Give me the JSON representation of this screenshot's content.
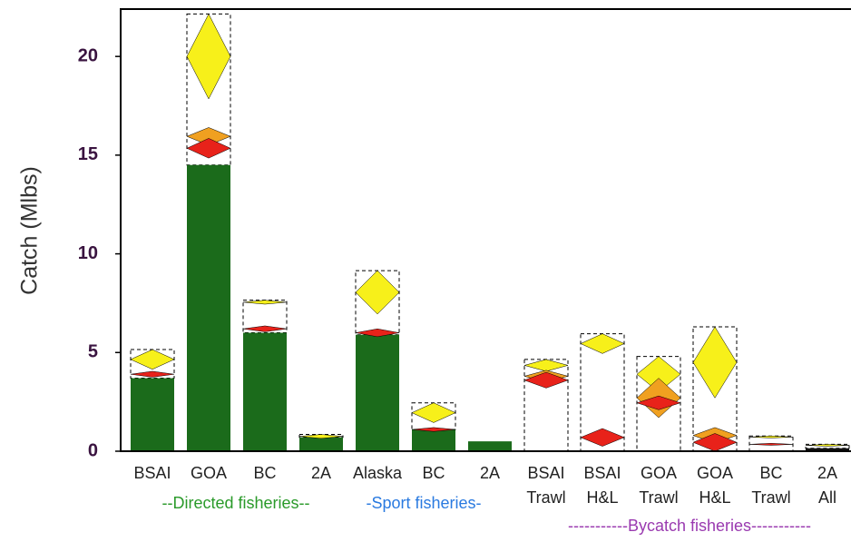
{
  "chart_data": {
    "type": "bar",
    "y_label": "Catch (Mlbs)",
    "categories": [
      [
        "BSAI"
      ],
      [
        "GOA"
      ],
      [
        "BC"
      ],
      [
        "2A"
      ],
      [
        "Alaska"
      ],
      [
        "BC"
      ],
      [
        "2A"
      ],
      [
        "BSAI",
        "Trawl"
      ],
      [
        "BSAI",
        "H&L"
      ],
      [
        "GOA",
        "Trawl"
      ],
      [
        "GOA",
        "H&L"
      ],
      [
        "BC",
        "Trawl"
      ],
      [
        "2A",
        "All"
      ]
    ],
    "values": [
      3.7,
      14.5,
      6.0,
      0.7,
      5.9,
      1.1,
      0.5,
      null,
      null,
      null,
      null,
      null,
      0.15
    ],
    "color": "#1b6b1b",
    "diamonds": [
      {
        "color": "#e8221a",
        "values": [
          3.9,
          15.35,
          6.2,
          null,
          6.0,
          1.1,
          null,
          3.6,
          0.7,
          2.45,
          0.45,
          0.35,
          null
        ],
        "errors": [
          0.15,
          0.5,
          0.15,
          null,
          0.2,
          0.1,
          null,
          0.4,
          0.45,
          0.35,
          0.45,
          0.05,
          null
        ]
      },
      {
        "color": "#f0a020",
        "values": [
          null,
          15.95,
          null,
          null,
          null,
          null,
          null,
          3.8,
          null,
          2.7,
          0.8,
          null,
          null
        ],
        "errors": [
          null,
          0.45,
          null,
          null,
          null,
          null,
          null,
          0.3,
          null,
          1.0,
          0.4,
          null,
          null
        ]
      },
      {
        "color": "#f7f01a",
        "values": [
          4.65,
          20.0,
          7.55,
          0.75,
          8.05,
          1.95,
          null,
          4.35,
          5.45,
          3.9,
          4.5,
          0.72,
          0.3
        ],
        "errors": [
          0.5,
          2.15,
          0.1,
          0.1,
          1.1,
          0.5,
          null,
          0.3,
          0.5,
          0.9,
          1.8,
          0.05,
          0.05
        ]
      }
    ],
    "groups": [
      {
        "label": "--Directed fisheries--",
        "color": "#2a9a2a"
      },
      {
        "label": "-Sport fisheries-",
        "color": "#2a7ae0"
      },
      {
        "label": "-----------Bycatch fisheries-----------",
        "color": "#9a3ab0"
      }
    ],
    "ylim": [
      0,
      22.4
    ],
    "yticks": [
      0,
      5,
      10,
      15,
      20
    ]
  }
}
